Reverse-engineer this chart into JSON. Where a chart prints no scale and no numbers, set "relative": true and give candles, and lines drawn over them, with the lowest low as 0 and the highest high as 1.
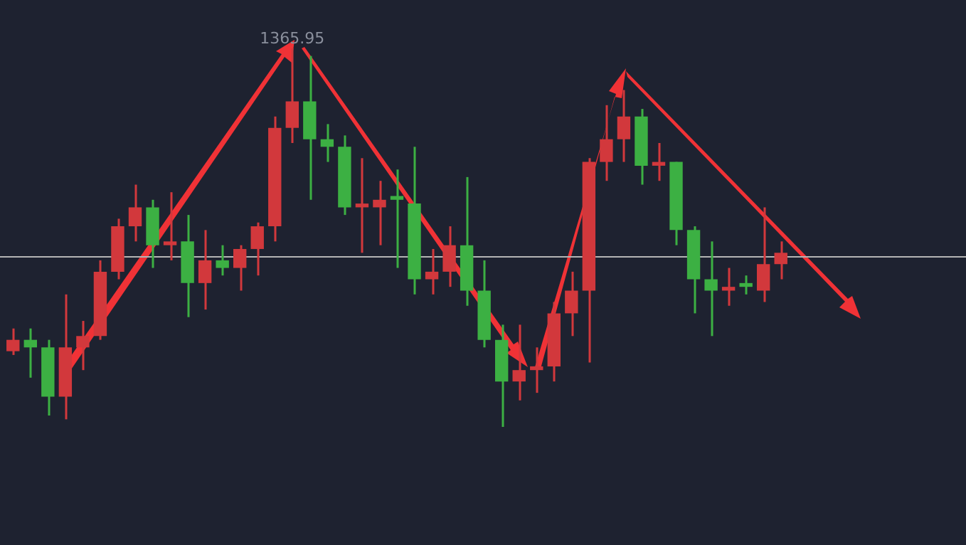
{
  "chart_data": {
    "type": "candlestick",
    "relative": true,
    "categories": [
      null,
      null,
      null,
      null,
      null,
      null,
      null,
      null,
      null,
      null,
      null,
      null,
      null,
      null,
      null,
      null,
      null,
      null,
      null,
      null,
      null,
      null,
      null,
      null,
      null,
      null,
      null,
      null,
      null,
      null,
      null,
      null,
      null,
      null,
      null,
      null,
      null,
      null,
      null,
      null,
      null,
      null,
      null,
      null,
      null
    ],
    "ohlc": [
      [
        0.2,
        0.26,
        0.19,
        0.23
      ],
      [
        0.23,
        0.26,
        0.13,
        0.21
      ],
      [
        0.21,
        0.23,
        0.03,
        0.08
      ],
      [
        0.08,
        0.35,
        0.02,
        0.21
      ],
      [
        0.21,
        0.28,
        0.15,
        0.24
      ],
      [
        0.24,
        0.44,
        0.23,
        0.41
      ],
      [
        0.41,
        0.55,
        0.39,
        0.53
      ],
      [
        0.53,
        0.64,
        0.49,
        0.58
      ],
      [
        0.58,
        0.6,
        0.42,
        0.48
      ],
      [
        0.48,
        0.62,
        0.44,
        0.49
      ],
      [
        0.49,
        0.56,
        0.29,
        0.38
      ],
      [
        0.38,
        0.52,
        0.31,
        0.44
      ],
      [
        0.44,
        0.48,
        0.4,
        0.42
      ],
      [
        0.42,
        0.48,
        0.36,
        0.47
      ],
      [
        0.47,
        0.54,
        0.4,
        0.53
      ],
      [
        0.53,
        0.82,
        0.49,
        0.79
      ],
      [
        0.79,
        1,
        0.75,
        0.86
      ],
      [
        0.86,
        0.98,
        0.6,
        0.76
      ],
      [
        0.76,
        0.8,
        0.7,
        0.74
      ],
      [
        0.74,
        0.77,
        0.56,
        0.58
      ],
      [
        0.58,
        0.71,
        0.46,
        0.59
      ],
      [
        0.58,
        0.65,
        0.48,
        0.6
      ],
      [
        0.61,
        0.68,
        0.42,
        0.6
      ],
      [
        0.59,
        0.74,
        0.35,
        0.39
      ],
      [
        0.39,
        0.47,
        0.35,
        0.41
      ],
      [
        0.41,
        0.53,
        0.37,
        0.48
      ],
      [
        0.48,
        0.66,
        0.32,
        0.36
      ],
      [
        0.36,
        0.44,
        0.21,
        0.23
      ],
      [
        0.23,
        0.27,
        0,
        0.12
      ],
      [
        0.12,
        0.27,
        0.07,
        0.15
      ],
      [
        0.15,
        0.21,
        0.09,
        0.16
      ],
      [
        0.16,
        0.33,
        0.12,
        0.3
      ],
      [
        0.3,
        0.41,
        0.24,
        0.36
      ],
      [
        0.36,
        0.71,
        0.17,
        0.7
      ],
      [
        0.7,
        0.85,
        0.65,
        0.76
      ],
      [
        0.76,
        0.89,
        0.7,
        0.82
      ],
      [
        0.82,
        0.84,
        0.64,
        0.69
      ],
      [
        0.69,
        0.75,
        0.65,
        0.7
      ],
      [
        0.7,
        0.7,
        0.48,
        0.52
      ],
      [
        0.52,
        0.53,
        0.3,
        0.39
      ],
      [
        0.39,
        0.49,
        0.24,
        0.36
      ],
      [
        0.36,
        0.42,
        0.32,
        0.37
      ],
      [
        0.38,
        0.4,
        0.35,
        0.37
      ],
      [
        0.36,
        0.58,
        0.33,
        0.43
      ],
      [
        0.43,
        0.49,
        0.39,
        0.46
      ]
    ],
    "colors": [
      "#d2383c",
      "#3cb043",
      "#3cb043",
      "#d2383c",
      "#d2383c",
      "#d2383c",
      "#d2383c",
      "#d2383c",
      "#3cb043",
      "#d2383c",
      "#3cb043",
      "#d2383c",
      "#3cb043",
      "#d2383c",
      "#d2383c",
      "#d2383c",
      "#d2383c",
      "#3cb043",
      "#3cb043",
      "#3cb043",
      "#d2383c",
      "#d2383c",
      "#3cb043",
      "#3cb043",
      "#d2383c",
      "#d2383c",
      "#3cb043",
      "#3cb043",
      "#3cb043",
      "#d2383c",
      "#d2383c",
      "#d2383c",
      "#d2383c",
      "#d2383c",
      "#d2383c",
      "#d2383c",
      "#3cb043",
      "#d2383c",
      "#3cb043",
      "#3cb043",
      "#3cb043",
      "#d2383c",
      "#3cb043",
      "#d2383c",
      "#d2383c"
    ],
    "ref_lines": [
      {
        "axis": "y",
        "value": 0.45,
        "color": "#b4b4b4"
      }
    ],
    "annotations": [
      {
        "text": "1365.95",
        "y": 1
      }
    ]
  }
}
